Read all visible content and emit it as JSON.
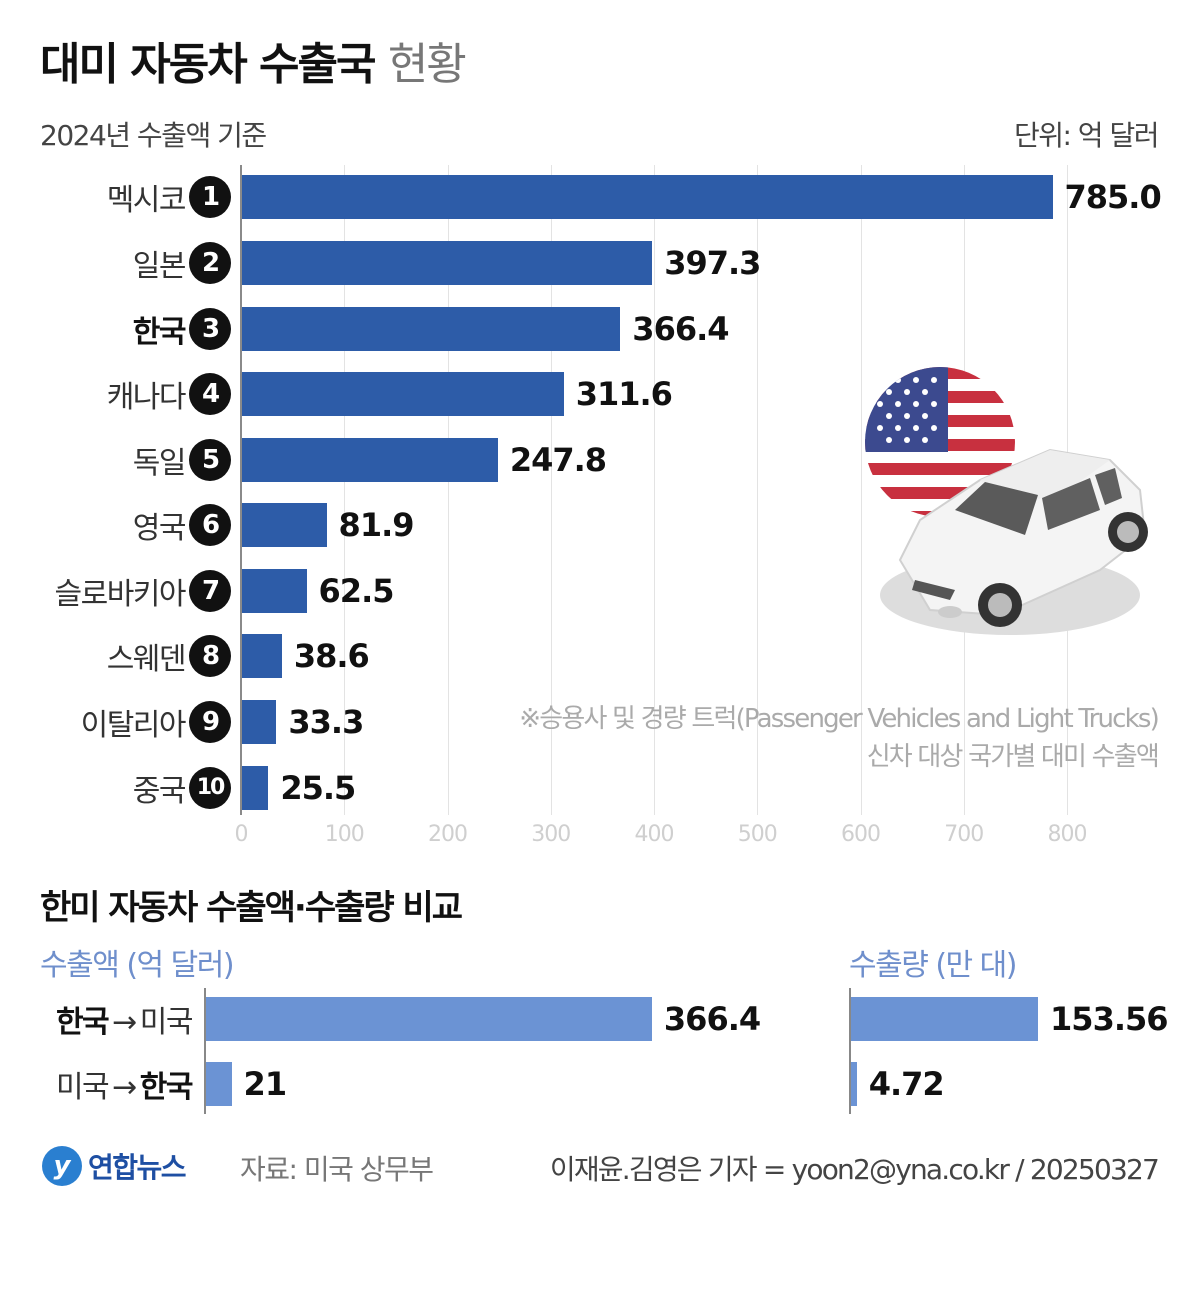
{
  "header": {
    "title_bold": "대미 자동차 수출국",
    "title_light": "현황",
    "subtitle": "2024년 수출액 기준",
    "unit": "단위: 억 달러"
  },
  "main_chart": {
    "axis_ticks": [
      "0",
      "100",
      "200",
      "300",
      "400",
      "500",
      "600",
      "700",
      "800"
    ],
    "rows": [
      {
        "rank": "1",
        "country": "멕시코",
        "value": "785.0"
      },
      {
        "rank": "2",
        "country": "일본",
        "value": "397.3"
      },
      {
        "rank": "3",
        "country": "한국",
        "value": "366.4"
      },
      {
        "rank": "4",
        "country": "캐나다",
        "value": "311.6"
      },
      {
        "rank": "5",
        "country": "독일",
        "value": "247.8"
      },
      {
        "rank": "6",
        "country": "영국",
        "value": "81.9"
      },
      {
        "rank": "7",
        "country": "슬로바키아",
        "value": "62.5"
      },
      {
        "rank": "8",
        "country": "스웨덴",
        "value": "38.6"
      },
      {
        "rank": "9",
        "country": "이탈리아",
        "value": "33.3"
      },
      {
        "rank": "10",
        "country": "중국",
        "value": "25.5"
      }
    ],
    "note_line1": "※승용사 및 경량 트럭(Passenger Vehicles and Light Trucks)",
    "note_line2": "신차 대상 국가별 대미 수출액"
  },
  "comparison": {
    "title": "한미 자동차 수출액·수출량 비교",
    "amount_label": "수출액 (억 달러)",
    "volume_label": "수출량 (만 대)",
    "rows": [
      {
        "from": "한국",
        "arrow": "→",
        "to": "미국",
        "amount": "366.4",
        "volume": "153.56"
      },
      {
        "from": "미국",
        "arrow": "→",
        "to": "한국",
        "amount": "21",
        "volume": "4.72"
      }
    ]
  },
  "footer": {
    "logo_mark": "y",
    "logo_text": "연합뉴스",
    "source": "자료: 미국 상무부",
    "credit": "이재윤.김영은 기자 = yoon2@yna.co.kr / 20250327"
  },
  "colors": {
    "main_bar": "#2d5ca8",
    "compare_bar": "#6b93d4",
    "compare_subtitle": "#6f8fcc",
    "rank_badge": "#111111"
  },
  "chart_data": [
    {
      "type": "bar",
      "orientation": "horizontal",
      "title": "대미 자동차 수출국 현황",
      "subtitle": "2024년 수출액 기준",
      "xlabel": "",
      "ylabel": "",
      "unit": "억 달러",
      "categories": [
        "멕시코",
        "일본",
        "한국",
        "캐나다",
        "독일",
        "영국",
        "슬로바키아",
        "스웨덴",
        "이탈리아",
        "중국"
      ],
      "values": [
        785.0,
        397.3,
        366.4,
        311.6,
        247.8,
        81.9,
        62.5,
        38.6,
        33.3,
        25.5
      ],
      "xlim": [
        0,
        800
      ],
      "x_ticks": [
        0,
        100,
        200,
        300,
        400,
        500,
        600,
        700,
        800
      ],
      "grid": true,
      "annotations": [
        "※승용사 및 경량 트럭(Passenger Vehicles and Light Trucks) 신차 대상 국가별 대미 수출액"
      ]
    },
    {
      "type": "bar",
      "orientation": "horizontal",
      "title": "한미 자동차 수출액·수출량 비교",
      "categories": [
        "한국 → 미국",
        "미국 → 한국"
      ],
      "series": [
        {
          "name": "수출액 (억 달러)",
          "values": [
            366.4,
            21
          ]
        },
        {
          "name": "수출량 (만 대)",
          "values": [
            153.56,
            4.72
          ]
        }
      ],
      "grid": false
    }
  ]
}
